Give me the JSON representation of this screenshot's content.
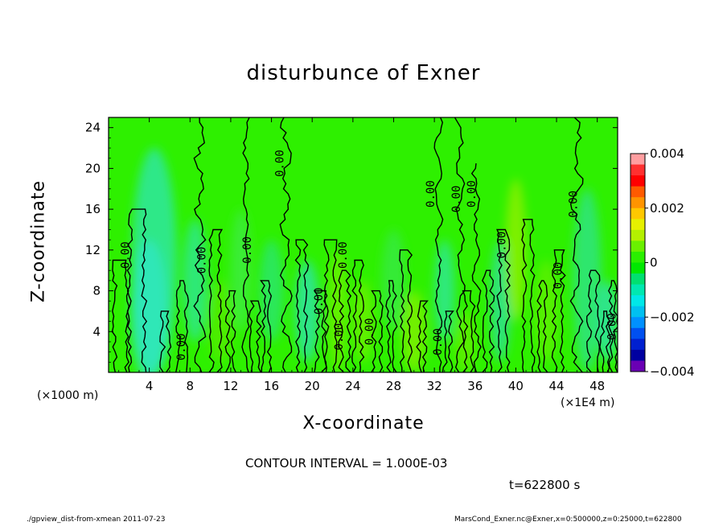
{
  "chart_data": {
    "type": "heatmap",
    "title": "disturbunce of Exner",
    "xlabel": "X-coordinate",
    "ylabel": "Z-coordinate",
    "x_unit_left": "(×1000 m)",
    "x_unit_right": "(×1E4 m)",
    "x_ticks": [
      4,
      8,
      12,
      16,
      20,
      24,
      28,
      32,
      36,
      40,
      44,
      48
    ],
    "y_ticks": [
      4,
      8,
      12,
      16,
      20,
      24
    ],
    "xlim": [
      0,
      50
    ],
    "ylim": [
      0,
      25
    ],
    "colorbar": {
      "ticks": [
        "0.004",
        "0.002",
        "0",
        "−0.002",
        "−0.004"
      ],
      "range": [
        -0.004,
        0.004
      ],
      "colors": [
        "#ff9ea0",
        "#ff3030",
        "#ff0000",
        "#ff5a00",
        "#ff9400",
        "#ffc800",
        "#e6f000",
        "#b4f000",
        "#6af000",
        "#2aef00",
        "#00e800",
        "#00e070",
        "#00e8b0",
        "#00e8e8",
        "#00c0f0",
        "#0090ff",
        "#0050f0",
        "#0020d0",
        "#0000a0",
        "#6a00b4"
      ]
    },
    "contour_label": "0.00",
    "contour_label_positions": [
      {
        "x": 2.0,
        "z": 11.5
      },
      {
        "x": 7.5,
        "z": 2.5
      },
      {
        "x": 9.5,
        "z": 11.0
      },
      {
        "x": 14.0,
        "z": 12.0
      },
      {
        "x": 17.2,
        "z": 20.5
      },
      {
        "x": 21.0,
        "z": 7.0
      },
      {
        "x": 23.0,
        "z": 3.5
      },
      {
        "x": 23.4,
        "z": 11.5
      },
      {
        "x": 26.0,
        "z": 4.0
      },
      {
        "x": 32.0,
        "z": 17.5
      },
      {
        "x": 32.7,
        "z": 3.0
      },
      {
        "x": 34.5,
        "z": 17.0
      },
      {
        "x": 36.0,
        "z": 17.5
      },
      {
        "x": 39.0,
        "z": 12.5
      },
      {
        "x": 44.5,
        "z": 9.5
      },
      {
        "x": 46.0,
        "z": 16.5
      },
      {
        "x": 49.8,
        "z": 4.5
      }
    ]
  },
  "contour_interval": "CONTOUR INTERVAL = 1.000E-03",
  "time_label": "t=622800 s",
  "footer_left": "./gpview_dist-from-xmean  2011-07-23",
  "footer_right": "MarsCond_Exner.nc@Exner,x=0:500000,z=0:25000,t=622800"
}
